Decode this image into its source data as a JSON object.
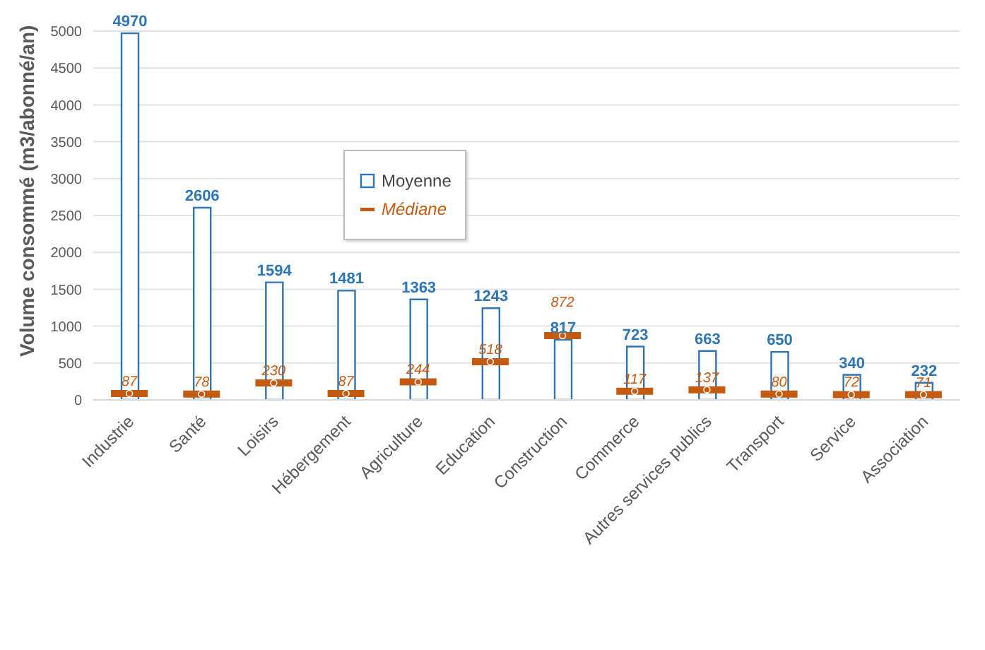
{
  "chart_data": {
    "type": "bar",
    "ylabel": "Volume consommé (m3/abonné/an)",
    "categories": [
      "Industrie",
      "Santé",
      "Loisirs",
      "Hébergement",
      "Agriculture",
      "Education",
      "Construction",
      "Commerce",
      "Autres services publics",
      "Transport",
      "Service",
      "Association"
    ],
    "series": [
      {
        "name": "Moyenne",
        "color": "#2e75b6",
        "values": [
          4970,
          2606,
          1594,
          1481,
          1363,
          1243,
          817,
          723,
          663,
          650,
          340,
          232
        ]
      },
      {
        "name": "Médiane",
        "type": "scatter",
        "color": "#c55a11",
        "values": [
          87,
          78,
          230,
          87,
          244,
          518,
          872,
          117,
          137,
          80,
          72,
          71
        ]
      }
    ],
    "ylim": [
      0,
      5000
    ],
    "yticks": [
      0,
      500,
      1000,
      1500,
      2000,
      2500,
      3000,
      3500,
      4000,
      4500,
      5000
    ],
    "grid": "y",
    "legend": "top",
    "data_labels": true
  }
}
